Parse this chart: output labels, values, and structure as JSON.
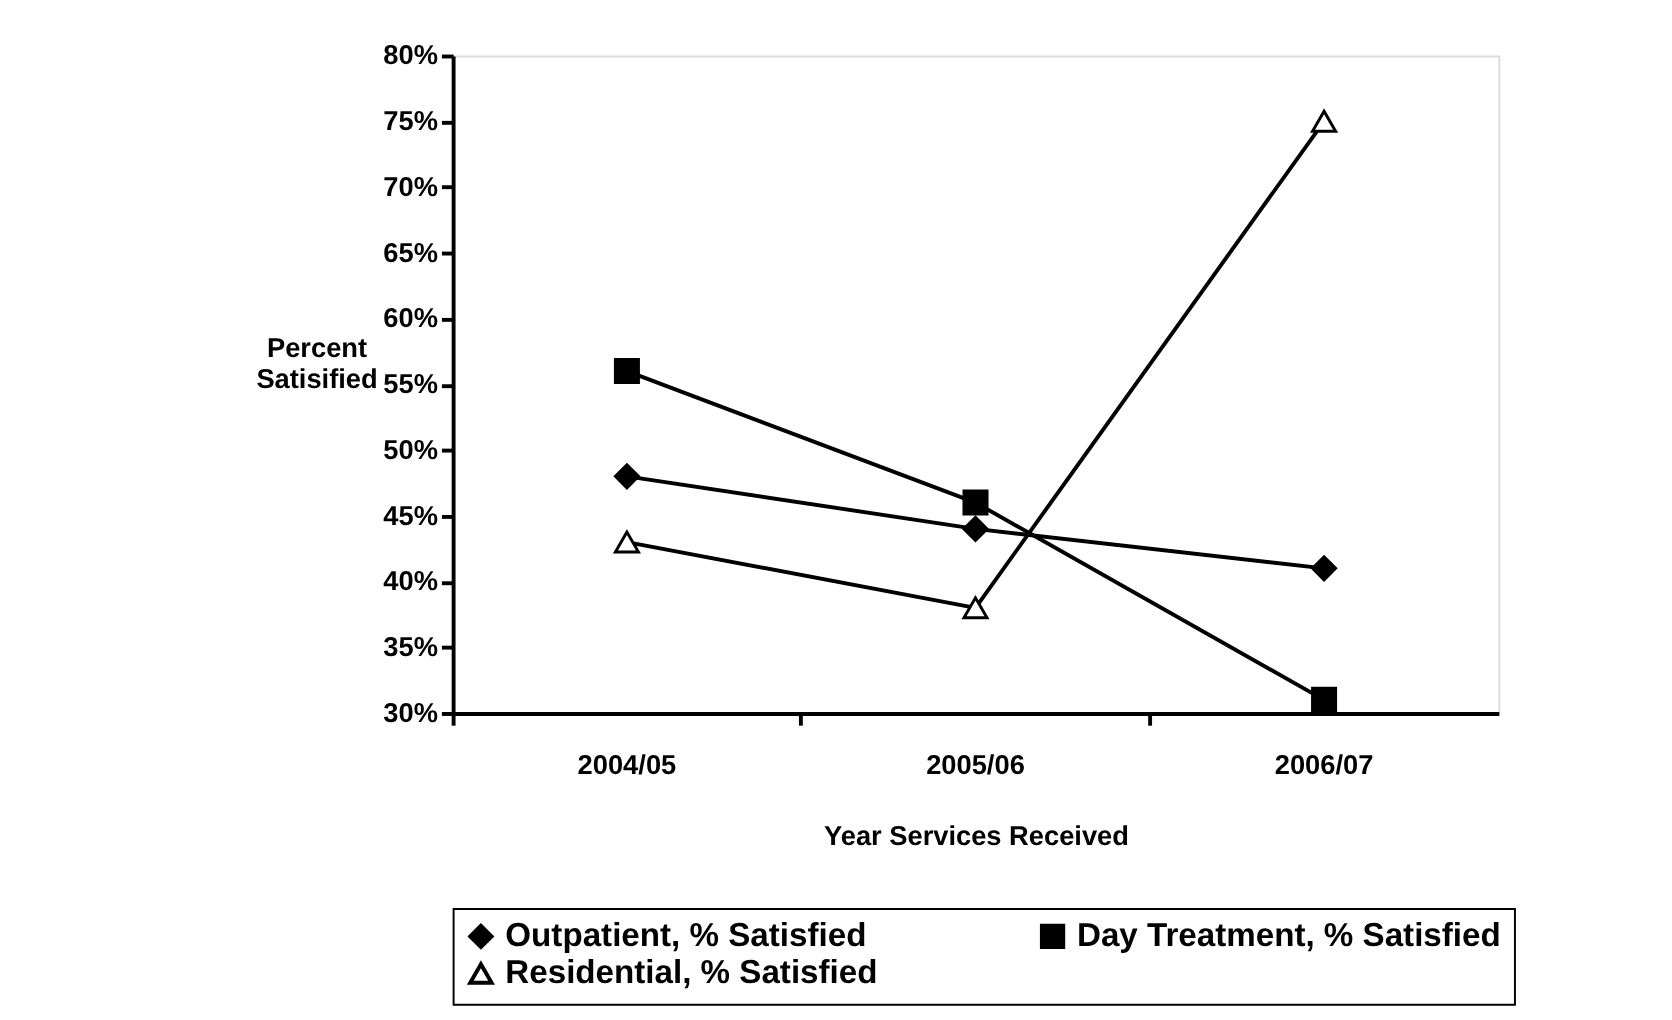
{
  "chart_data": {
    "type": "line",
    "xlabel": "Year Services Received",
    "ylabel": "Percent Satisified",
    "categories": [
      "2004/05",
      "2005/06",
      "2006/07"
    ],
    "series": [
      {
        "name": "Outpatient, % Satisfied",
        "color": "#000000",
        "marker": "diamond",
        "values": [
          48,
          44,
          41
        ]
      },
      {
        "name": "Day Treatment, % Satisfied",
        "color": "#000000",
        "marker": "square",
        "values": [
          56,
          46,
          31
        ]
      },
      {
        "name": "Residential, % Satisfied",
        "color": "#000000",
        "marker": "triangle",
        "values": [
          43,
          38,
          75
        ]
      }
    ],
    "ylim": [
      30,
      80
    ],
    "yticks": [
      {
        "value": 30,
        "label": "30%"
      },
      {
        "value": 35,
        "label": "35%"
      },
      {
        "value": 40,
        "label": "40%"
      },
      {
        "value": 45,
        "label": "45%"
      },
      {
        "value": 50,
        "label": "50%"
      },
      {
        "value": 55,
        "label": "55%"
      },
      {
        "value": 60,
        "label": "60%"
      },
      {
        "value": 65,
        "label": "65%"
      },
      {
        "value": 70,
        "label": "70%"
      },
      {
        "value": 75,
        "label": "75%"
      },
      {
        "value": 80,
        "label": "80%"
      }
    ],
    "grid": false,
    "legend": "bottom",
    "line_style": "solid"
  }
}
